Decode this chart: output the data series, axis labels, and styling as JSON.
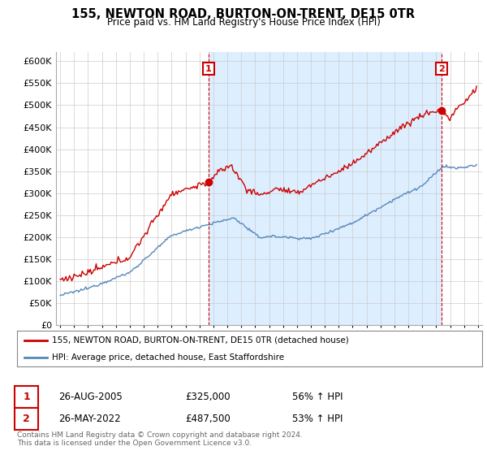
{
  "title": "155, NEWTON ROAD, BURTON-ON-TRENT, DE15 0TR",
  "subtitle": "Price paid vs. HM Land Registry's House Price Index (HPI)",
  "legend_line1": "155, NEWTON ROAD, BURTON-ON-TRENT, DE15 0TR (detached house)",
  "legend_line2": "HPI: Average price, detached house, East Staffordshire",
  "annotation1_date": "26-AUG-2005",
  "annotation1_price": "£325,000",
  "annotation1_hpi": "56% ↑ HPI",
  "annotation2_date": "26-MAY-2022",
  "annotation2_price": "£487,500",
  "annotation2_hpi": "53% ↑ HPI",
  "footer": "Contains HM Land Registry data © Crown copyright and database right 2024.\nThis data is licensed under the Open Government Licence v3.0.",
  "red_color": "#cc0000",
  "blue_color": "#5588bb",
  "shade_color": "#ddeeff",
  "grid_color": "#cccccc",
  "background_color": "#ffffff",
  "ylim": [
    0,
    620000
  ],
  "yticks": [
    0,
    50000,
    100000,
    150000,
    200000,
    250000,
    300000,
    350000,
    400000,
    450000,
    500000,
    550000,
    600000
  ],
  "sale1_x": 2005.65,
  "sale1_y": 325000,
  "sale2_x": 2022.38,
  "sale2_y": 487500,
  "xmin": 1994.7,
  "xmax": 2025.3
}
